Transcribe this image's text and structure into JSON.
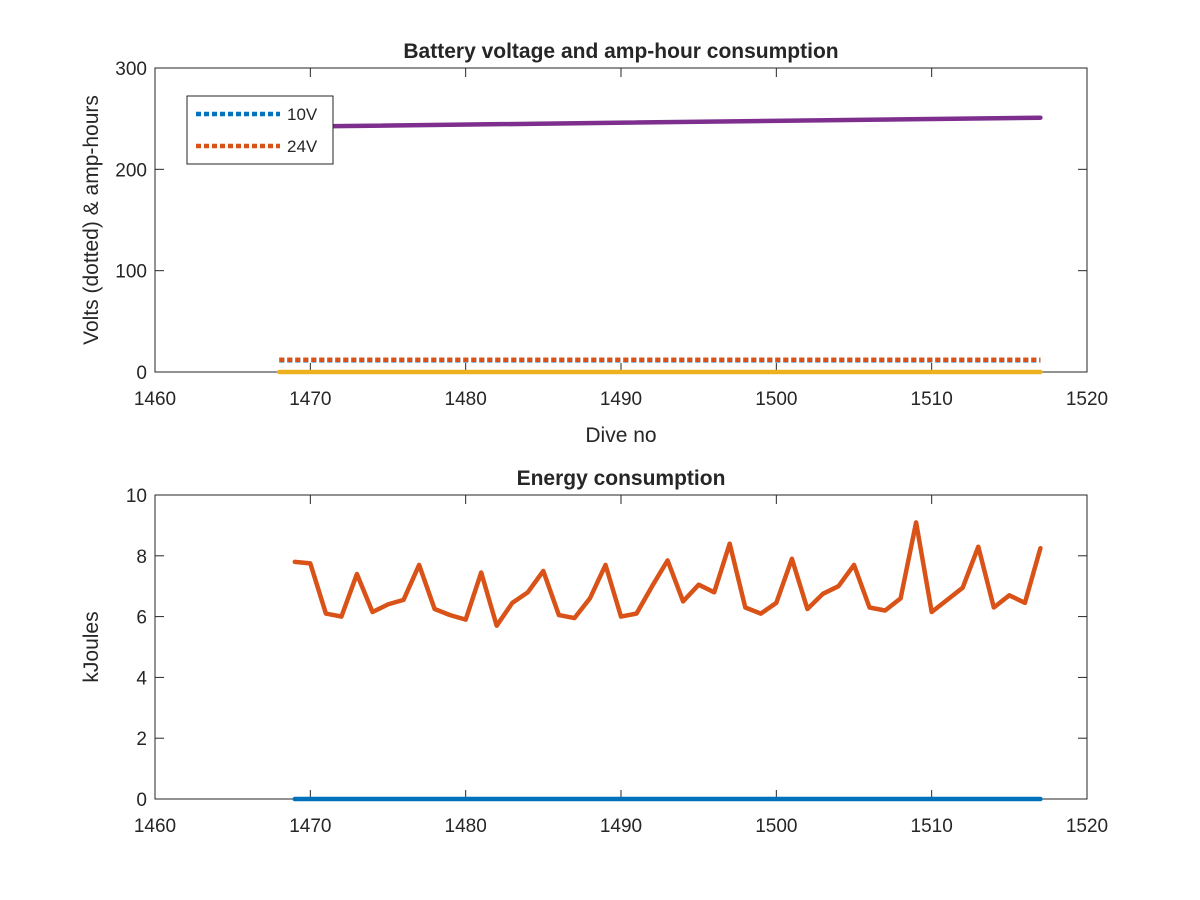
{
  "chart_data": [
    {
      "type": "line",
      "title": "Battery voltage and amp-hour consumption",
      "xlabel": "Dive no",
      "ylabel": "Volts (dotted) & amp-hours",
      "xlim": [
        1460,
        1520
      ],
      "ylim": [
        0,
        300
      ],
      "xticks": [
        1460,
        1470,
        1480,
        1490,
        1500,
        1510,
        1520
      ],
      "yticks": [
        0,
        100,
        200,
        300
      ],
      "grid": false,
      "legend_position": "top-left",
      "series": [
        {
          "name": "10V",
          "style": "dotted",
          "color": "#0072BD",
          "x": [
            1468,
            1517
          ],
          "y": [
            11.5,
            11.5
          ]
        },
        {
          "name": "24V",
          "style": "dotted",
          "color": "#D95319",
          "x": [
            1468,
            1517
          ],
          "y": [
            12,
            12
          ]
        },
        {
          "style": "solid",
          "color": "#EDB120",
          "x": [
            1468,
            1517
          ],
          "y": [
            0,
            0
          ]
        },
        {
          "style": "solid",
          "color": "#7E2F8E",
          "x": [
            1468,
            1517
          ],
          "y": [
            242,
            251
          ]
        }
      ]
    },
    {
      "type": "line",
      "title": "Energy consumption",
      "xlabel": "",
      "ylabel": "kJoules",
      "xlim": [
        1460,
        1520
      ],
      "ylim": [
        0,
        10
      ],
      "xticks": [
        1460,
        1470,
        1480,
        1490,
        1500,
        1510,
        1520
      ],
      "yticks": [
        0,
        2,
        4,
        6,
        8,
        10
      ],
      "grid": false,
      "series": [
        {
          "style": "solid",
          "color": "#0072BD",
          "x": [
            1469,
            1517
          ],
          "y": [
            0,
            0
          ]
        },
        {
          "style": "solid",
          "color": "#D95319",
          "x": [
            1469,
            1470,
            1471,
            1472,
            1473,
            1474,
            1475,
            1476,
            1477,
            1478,
            1479,
            1480,
            1481,
            1482,
            1483,
            1484,
            1485,
            1486,
            1487,
            1488,
            1489,
            1490,
            1491,
            1492,
            1493,
            1494,
            1495,
            1496,
            1497,
            1498,
            1499,
            1500,
            1501,
            1502,
            1503,
            1504,
            1505,
            1506,
            1507,
            1508,
            1509,
            1510,
            1511,
            1512,
            1513,
            1514,
            1515,
            1516,
            1517
          ],
          "y": [
            7.8,
            7.75,
            6.1,
            6.0,
            7.4,
            6.15,
            6.4,
            6.55,
            7.7,
            6.25,
            6.05,
            5.9,
            7.45,
            5.7,
            6.45,
            6.8,
            7.5,
            6.05,
            5.95,
            6.6,
            7.7,
            6.0,
            6.1,
            7.0,
            7.85,
            6.5,
            7.05,
            6.8,
            8.4,
            6.3,
            6.1,
            6.45,
            7.9,
            6.25,
            6.75,
            7.0,
            7.7,
            6.3,
            6.2,
            6.6,
            9.1,
            6.15,
            6.55,
            6.95,
            8.3,
            6.3,
            6.7,
            6.45,
            8.25
          ]
        }
      ]
    }
  ]
}
